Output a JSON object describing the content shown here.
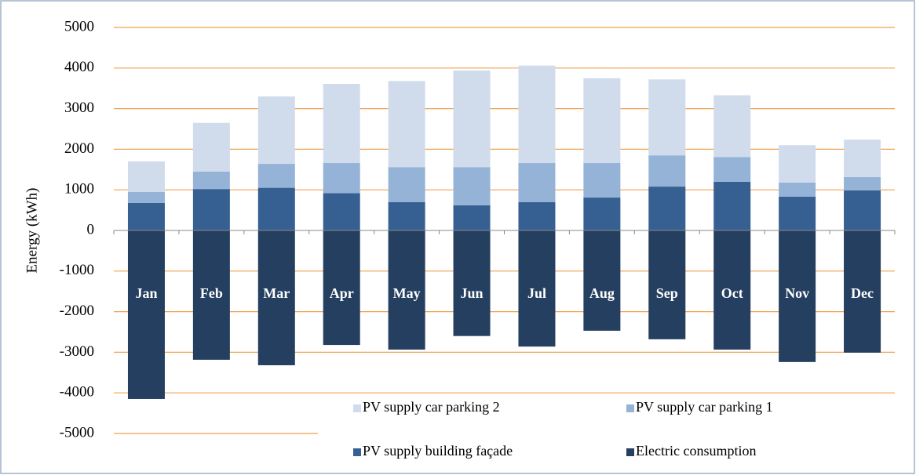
{
  "chart_data": {
    "type": "bar",
    "stacked": true,
    "y_label": "Energy (kWh)",
    "categories": [
      "Jan",
      "Feb",
      "Mar",
      "Apr",
      "May",
      "Jun",
      "Jul",
      "Aug",
      "Sep",
      "Oct",
      "Nov",
      "Dec"
    ],
    "series": [
      {
        "name": "PV supply building façade",
        "color": "#376092",
        "values": [
          680,
          1020,
          1050,
          920,
          700,
          620,
          700,
          810,
          1080,
          1200,
          830,
          985
        ]
      },
      {
        "name": "PV supply car parking 1",
        "color": "#95b3d7",
        "values": [
          270,
          430,
          590,
          740,
          860,
          940,
          960,
          850,
          770,
          610,
          350,
          330
        ]
      },
      {
        "name": "PV supply car parking 2",
        "color": "#d0dcec",
        "values": [
          750,
          1200,
          1660,
          1950,
          2120,
          2380,
          2400,
          2090,
          1870,
          1520,
          920,
          920
        ]
      },
      {
        "name": "Electric consumption",
        "color": "#243f60",
        "values": [
          -4150,
          -3185,
          -3320,
          -2820,
          -2935,
          -2600,
          -2860,
          -2470,
          -2680,
          -2935,
          -3240,
          -3010
        ]
      }
    ],
    "legend_order": [
      2,
      1,
      0,
      3
    ],
    "ylim": [
      -5000,
      5000
    ],
    "yticks": [
      -5000,
      -4000,
      -3000,
      -2000,
      -1000,
      0,
      1000,
      2000,
      3000,
      4000,
      5000
    ],
    "grid": true,
    "grid_color": "#f0a050"
  }
}
